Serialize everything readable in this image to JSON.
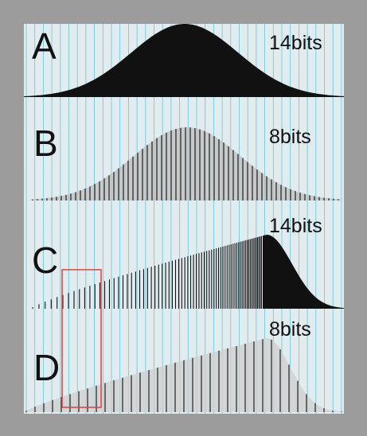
{
  "panels": [
    {
      "label": "A",
      "bits": "14bits"
    },
    {
      "label": "B",
      "bits": "8bits"
    },
    {
      "label": "C",
      "bits": "14bits"
    },
    {
      "label": "D",
      "bits": "8bits"
    }
  ]
}
